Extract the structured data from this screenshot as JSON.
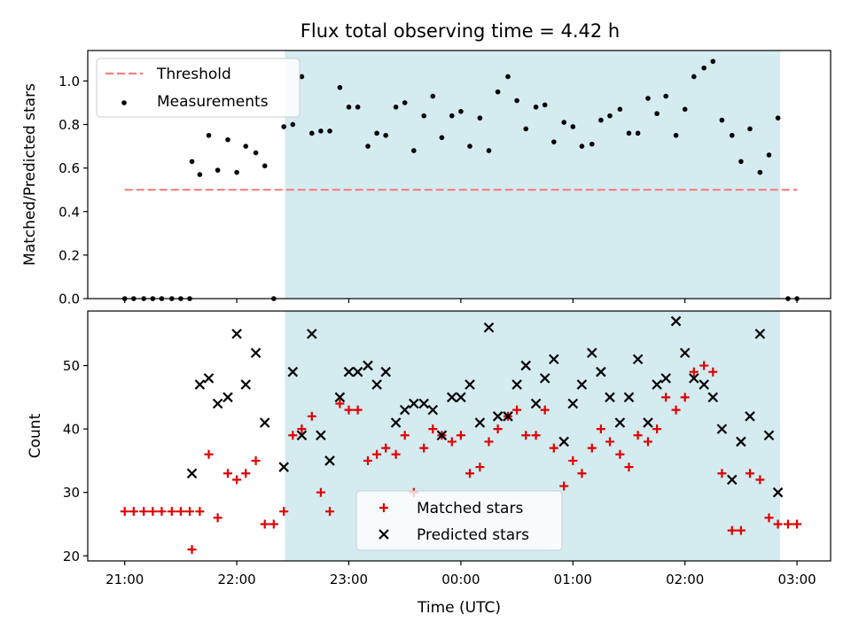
{
  "colors": {
    "shade": "#d4ebf0",
    "threshold": "#f58080",
    "measurements": "#000000",
    "matched": "#e00000",
    "predicted": "#000000"
  },
  "chart_data": [
    {
      "type": "scatter",
      "title": "Flux total observing time = 4.42 h",
      "xlabel": "",
      "ylabel": "Matched/Predicted stars",
      "ylim": [
        0,
        1.14
      ],
      "yticks": [
        0.0,
        0.2,
        0.4,
        0.6,
        0.8,
        1.0
      ],
      "ytick_labels": [
        "0.0",
        "0.2",
        "0.4",
        "0.6",
        "0.8",
        "1.0"
      ],
      "x_unit": "hours (24 = 00:00 next day)",
      "xlim": [
        20.67,
        27.3
      ],
      "shaded_region": [
        22.43,
        26.85
      ],
      "legend_position": "upper left",
      "threshold": {
        "name": "Threshold",
        "value": 0.5,
        "x_range": [
          21.0,
          27.0
        ]
      },
      "series": [
        {
          "name": "Measurements",
          "x": [
            21.0,
            21.08,
            21.17,
            21.25,
            21.33,
            21.42,
            21.5,
            21.58,
            21.6,
            21.67,
            21.75,
            21.83,
            21.92,
            22.0,
            22.08,
            22.17,
            22.25,
            22.33,
            22.42,
            22.5,
            22.58,
            22.67,
            22.75,
            22.83,
            22.92,
            23.0,
            23.08,
            23.17,
            23.25,
            23.33,
            23.42,
            23.5,
            23.58,
            23.67,
            23.75,
            23.83,
            23.92,
            24.0,
            24.08,
            24.17,
            24.25,
            24.33,
            24.42,
            24.5,
            24.58,
            24.67,
            24.75,
            24.83,
            24.92,
            25.0,
            25.08,
            25.17,
            25.25,
            25.33,
            25.42,
            25.5,
            25.58,
            25.67,
            25.75,
            25.83,
            25.92,
            26.0,
            26.08,
            26.17,
            26.25,
            26.33,
            26.42,
            26.5,
            26.58,
            26.67,
            26.75,
            26.83,
            26.92,
            27.0
          ],
          "y": [
            0.0,
            0.0,
            0.0,
            0.0,
            0.0,
            0.0,
            0.0,
            0.0,
            0.63,
            0.57,
            0.75,
            0.59,
            0.73,
            0.58,
            0.7,
            0.67,
            0.61,
            0.0,
            0.79,
            0.8,
            1.02,
            0.76,
            0.77,
            0.77,
            0.97,
            0.88,
            0.88,
            0.7,
            0.76,
            0.75,
            0.88,
            0.9,
            0.68,
            0.84,
            0.93,
            0.74,
            0.84,
            0.86,
            0.7,
            0.83,
            0.68,
            0.95,
            1.02,
            0.91,
            0.78,
            0.88,
            0.89,
            0.72,
            0.81,
            0.79,
            0.7,
            0.71,
            0.82,
            0.84,
            0.87,
            0.76,
            0.76,
            0.92,
            0.85,
            0.93,
            0.75,
            0.87,
            1.02,
            1.06,
            1.09,
            0.82,
            0.75,
            0.63,
            0.78,
            0.58,
            0.66,
            0.83,
            0.0,
            0.0
          ]
        }
      ]
    },
    {
      "type": "scatter",
      "title": "",
      "xlabel": "Time (UTC)",
      "ylabel": "Count",
      "ylim": [
        19.2,
        58.6
      ],
      "yticks": [
        20,
        30,
        40,
        50
      ],
      "ytick_labels": [
        "20",
        "30",
        "40",
        "50"
      ],
      "x_unit": "hours (24 = 00:00 next day)",
      "xlim": [
        20.67,
        27.3
      ],
      "xticks": [
        21,
        22,
        23,
        24,
        25,
        26,
        27
      ],
      "xtick_labels": [
        "21:00",
        "22:00",
        "23:00",
        "00:00",
        "01:00",
        "02:00",
        "03:00"
      ],
      "shaded_region": [
        22.43,
        26.85
      ],
      "legend_position": "lower center",
      "series": [
        {
          "name": "Matched stars",
          "marker": "+",
          "x": [
            21.0,
            21.08,
            21.17,
            21.25,
            21.33,
            21.42,
            21.5,
            21.58,
            21.6,
            21.67,
            21.75,
            21.83,
            21.92,
            22.0,
            22.08,
            22.17,
            22.25,
            22.33,
            22.42,
            22.5,
            22.58,
            22.67,
            22.75,
            22.83,
            22.92,
            23.0,
            23.08,
            23.17,
            23.25,
            23.33,
            23.42,
            23.5,
            23.58,
            23.67,
            23.75,
            23.83,
            23.92,
            24.0,
            24.08,
            24.17,
            24.25,
            24.33,
            24.42,
            24.5,
            24.58,
            24.67,
            24.75,
            24.83,
            24.92,
            25.0,
            25.08,
            25.17,
            25.25,
            25.33,
            25.42,
            25.5,
            25.58,
            25.67,
            25.75,
            25.83,
            25.92,
            26.0,
            26.08,
            26.17,
            26.25,
            26.33,
            26.42,
            26.5,
            26.58,
            26.67,
            26.75,
            26.83,
            26.92,
            27.0
          ],
          "y": [
            27,
            27,
            27,
            27,
            27,
            27,
            27,
            27,
            21,
            27,
            36,
            26,
            33,
            32,
            33,
            35,
            25,
            25,
            27,
            39,
            40,
            42,
            30,
            27,
            44,
            43,
            43,
            35,
            36,
            37,
            36,
            39,
            30,
            37,
            40,
            39,
            38,
            39,
            33,
            34,
            38,
            40,
            42,
            43,
            39,
            39,
            43,
            37,
            31,
            35,
            33,
            37,
            40,
            38,
            36,
            34,
            39,
            38,
            40,
            45,
            43,
            45,
            49,
            50,
            49,
            33,
            24,
            24,
            33,
            32,
            26,
            25,
            25,
            25
          ]
        },
        {
          "name": "Predicted stars",
          "marker": "x",
          "x": [
            21.6,
            21.67,
            21.75,
            21.83,
            21.92,
            22.0,
            22.08,
            22.17,
            22.25,
            22.42,
            22.5,
            22.58,
            22.67,
            22.75,
            22.83,
            22.92,
            23.0,
            23.08,
            23.17,
            23.25,
            23.33,
            23.42,
            23.5,
            23.58,
            23.67,
            23.75,
            23.83,
            23.92,
            24.0,
            24.08,
            24.17,
            24.25,
            24.33,
            24.42,
            24.5,
            24.58,
            24.67,
            24.75,
            24.83,
            24.92,
            25.0,
            25.08,
            25.17,
            25.25,
            25.33,
            25.42,
            25.5,
            25.58,
            25.67,
            25.75,
            25.83,
            25.92,
            26.0,
            26.08,
            26.17,
            26.25,
            26.33,
            26.42,
            26.5,
            26.58,
            26.67,
            26.75,
            26.83
          ],
          "y": [
            33,
            47,
            48,
            44,
            45,
            55,
            47,
            52,
            41,
            34,
            49,
            39,
            55,
            39,
            35,
            45,
            49,
            49,
            50,
            47,
            49,
            41,
            43,
            44,
            44,
            43,
            39,
            45,
            45,
            47,
            41,
            56,
            42,
            42,
            47,
            50,
            44,
            48,
            51,
            38,
            44,
            47,
            52,
            49,
            45,
            41,
            45,
            51,
            41,
            47,
            48,
            57,
            52,
            48,
            47,
            45,
            40,
            32,
            38,
            42,
            55,
            39,
            30
          ]
        }
      ]
    }
  ]
}
